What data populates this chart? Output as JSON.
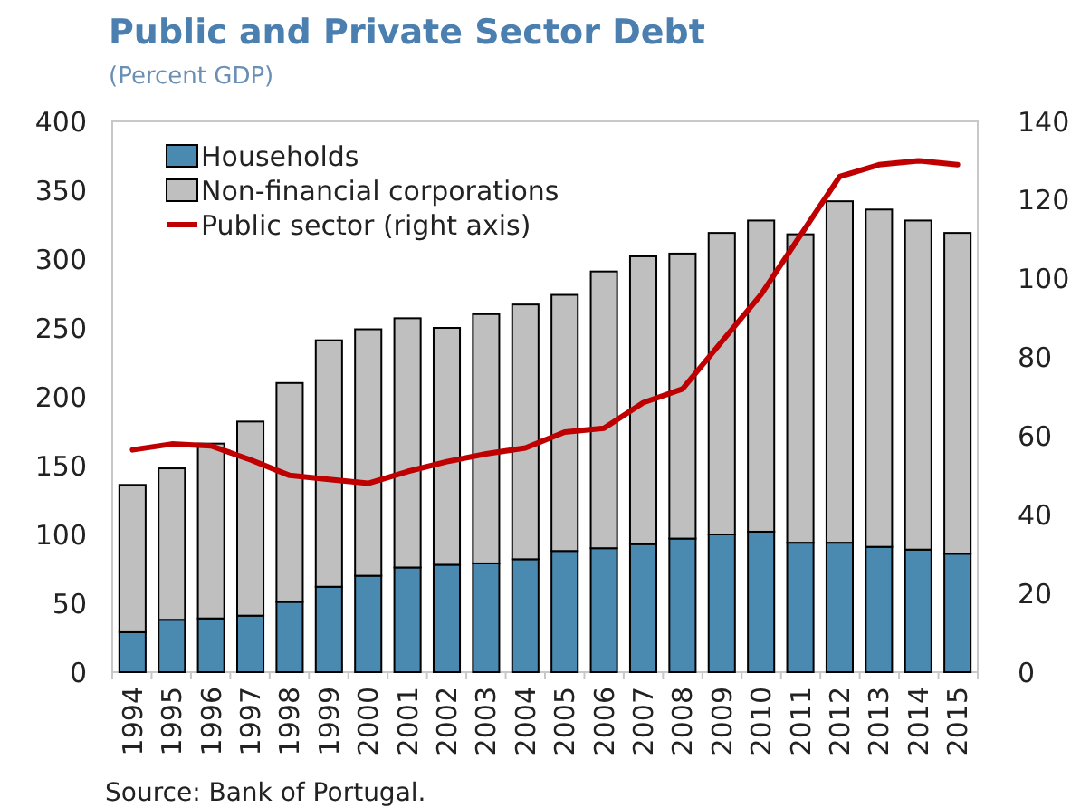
{
  "chart_data": {
    "type": "bar",
    "title": "Public and Private Sector Debt",
    "subtitle": "(Percent GDP)",
    "annotations": [
      "Source: Bank of Portugal."
    ],
    "categories": [
      "1994",
      "1995",
      "1996",
      "1997",
      "1998",
      "1999",
      "2000",
      "2001",
      "2002",
      "2003",
      "2004",
      "2005",
      "2006",
      "2007",
      "2008",
      "2009",
      "2010",
      "2011",
      "2012",
      "2013",
      "2014",
      "2015"
    ],
    "stacked": true,
    "legend": "top left",
    "grid": false,
    "ylim": [
      0,
      400
    ],
    "yticks": [
      0,
      50,
      100,
      150,
      200,
      250,
      300,
      350,
      400
    ],
    "y2lim": [
      0,
      140
    ],
    "y2ticks": [
      0,
      20,
      40,
      60,
      80,
      100,
      120,
      140
    ],
    "series": [
      {
        "name": "Households",
        "color": "#4a89b0",
        "values": [
          29,
          38,
          39,
          41,
          51,
          62,
          70,
          76,
          78,
          79,
          82,
          88,
          90,
          93,
          97,
          100,
          102,
          94,
          94,
          91,
          89,
          86
        ]
      },
      {
        "name": "Non-financial corporations",
        "color": "#bfbfbf",
        "values": [
          107,
          110,
          127,
          141,
          159,
          179,
          179,
          181,
          172,
          181,
          185,
          186,
          201,
          209,
          207,
          219,
          226,
          224,
          248,
          245,
          239,
          233
        ]
      },
      {
        "name": "Public sector (right axis)",
        "type": "line",
        "axis": "y2",
        "color": "#c00000",
        "values": [
          56.5,
          58,
          57.5,
          54,
          50,
          49,
          48,
          51,
          53.5,
          55.5,
          57,
          61,
          62,
          68.5,
          72,
          84,
          96,
          111,
          126,
          129,
          130,
          129
        ]
      }
    ]
  }
}
